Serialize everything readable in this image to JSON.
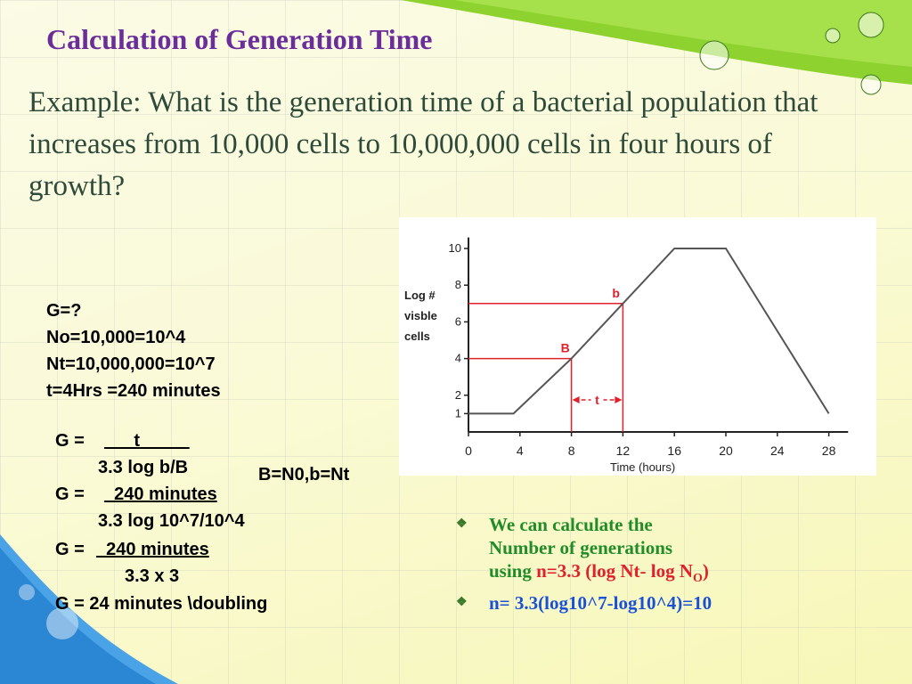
{
  "slide": {
    "title": "Calculation of Generation Time",
    "question": "Example: What is the generation time of a bacterial population that increases from 10,000 cells to 10,000,000 cells in four hours of growth?",
    "given": [
      "G=?",
      "No=10,000=10^4",
      "Nt=10,000,000=10^7",
      "t=4Hrs =240 minutes"
    ],
    "steps": {
      "s1_lhs": "G =",
      "s1_num": "___t_____",
      "s1_den": "3.3 log b/B",
      "s2_lhs": "G =",
      "s2_num": "_240 minutes",
      "s2_den": "3.3 log 10^7/10^4",
      "s3_lhs": "G =",
      "s3_num": "_240 minutes",
      "s3_den": "3.3 x 3",
      "result": "G = 24 minutes \\doubling"
    },
    "note": "B=N0,b=Nt",
    "bullets": {
      "b1_line1": "We can calculate the",
      "b1_line2": "Number of generations",
      "b1_line3_pre": "using",
      "b1_formula": "n=3.3 (log Nt- log N",
      "b1_sub": "O",
      "b1_close": ")",
      "b2_text": "n= 3.3(log10^7-log10^4)=10"
    }
  },
  "graph": {
    "ylabel": [
      "Log #",
      "visble",
      "cells"
    ],
    "xlabel": "Time (hours)",
    "xticks": [
      "0",
      "4",
      "8",
      "12",
      "16",
      "20",
      "24",
      "28"
    ],
    "yticks": [
      "1",
      "2",
      "4",
      "6",
      "8",
      "10"
    ],
    "point_B": "B",
    "point_b": "b",
    "interval": "t",
    "line_color": "#555555",
    "marker_color": "#e0202a",
    "curve": [
      {
        "x": 0,
        "y": 1
      },
      {
        "x": 3.5,
        "y": 1
      },
      {
        "x": 8,
        "y": 4
      },
      {
        "x": 12,
        "y": 7
      },
      {
        "x": 16,
        "y": 10
      },
      {
        "x": 20,
        "y": 10
      },
      {
        "x": 28,
        "y": 1
      }
    ],
    "B": {
      "x": 8,
      "y": 4
    },
    "b": {
      "x": 12,
      "y": 7
    }
  }
}
